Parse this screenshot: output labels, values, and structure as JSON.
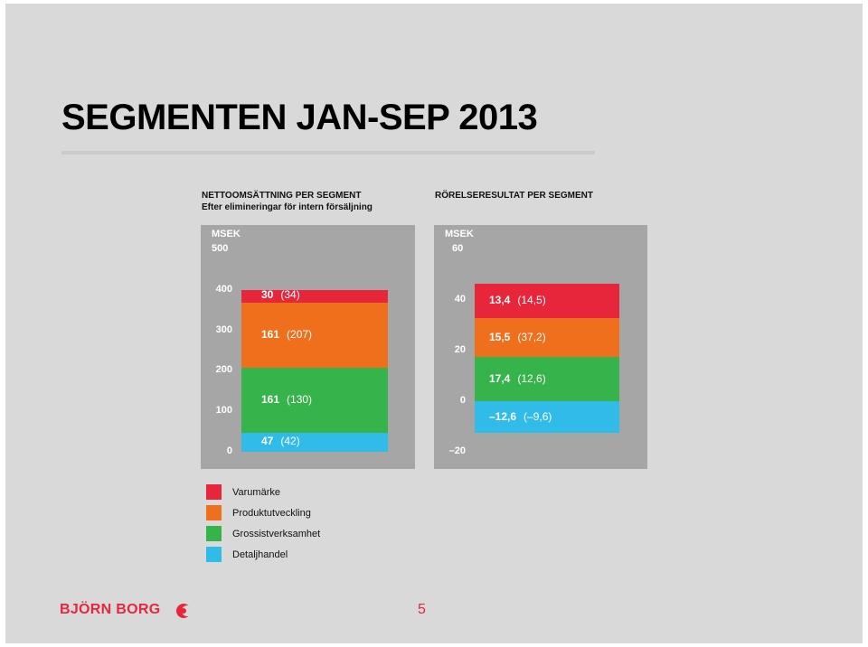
{
  "title": "SEGMENTEN JAN-SEP 2013",
  "colors": {
    "varumarke": "#e8263b",
    "produktutveckling": "#ef6f1c",
    "grossist": "#36b34a",
    "detaljhandel": "#31bbe8",
    "panel": "#a6a6a6",
    "brand": "#e8263b"
  },
  "legend": [
    {
      "label": "Varumärke",
      "color": "#e8263b"
    },
    {
      "label": "Produktutveckling",
      "color": "#ef6f1c"
    },
    {
      "label": "Grossistverksamhet",
      "color": "#36b34a"
    },
    {
      "label": "Detaljhandel",
      "color": "#31bbe8"
    }
  ],
  "chart_data": [
    {
      "type": "bar",
      "stacked": true,
      "title": "NETTOOMSÄTTNING PER SEGMENT",
      "subtitle": "Efter elimineringar för intern försäljning",
      "unit": "MSEK",
      "ylim": [
        0,
        500
      ],
      "yticks": [
        "0",
        "100",
        "200",
        "300",
        "400",
        "500"
      ],
      "grid": false,
      "series": [
        {
          "name": "Detaljhandel",
          "value": 47,
          "value_label": "47",
          "prior_label": "(42)",
          "color": "#31bbe8"
        },
        {
          "name": "Grossistverksamhet",
          "value": 161,
          "value_label": "161",
          "prior_label": "(130)",
          "color": "#36b34a"
        },
        {
          "name": "Produktutveckling",
          "value": 161,
          "value_label": "161",
          "prior_label": "(207)",
          "color": "#ef6f1c"
        },
        {
          "name": "Varumärke",
          "value": 30,
          "value_label": "30",
          "prior_label": "(34)",
          "color": "#e8263b"
        }
      ]
    },
    {
      "type": "bar",
      "stacked": true,
      "title": "RÖRELSERESULTAT PER SEGMENT",
      "unit": "MSEK",
      "ylim": [
        -20,
        60
      ],
      "yticks": [
        "–20",
        "0",
        "20",
        "40",
        "60"
      ],
      "grid": false,
      "series": [
        {
          "name": "Detaljhandel",
          "value": -12.6,
          "value_label": "–12,6",
          "prior_label": "(–9,6)",
          "color": "#31bbe8"
        },
        {
          "name": "Grossistverksamhet",
          "value": 17.4,
          "value_label": "17,4",
          "prior_label": "(12,6)",
          "color": "#36b34a"
        },
        {
          "name": "Produktutveckling",
          "value": 15.5,
          "value_label": "15,5",
          "prior_label": "(37,2)",
          "color": "#ef6f1c"
        },
        {
          "name": "Varumärke",
          "value": 13.4,
          "value_label": "13,4",
          "prior_label": "(14,5)",
          "color": "#e8263b"
        }
      ]
    }
  ],
  "footer": {
    "logo_text": "BJÖRN BORG",
    "page_number": "5"
  }
}
